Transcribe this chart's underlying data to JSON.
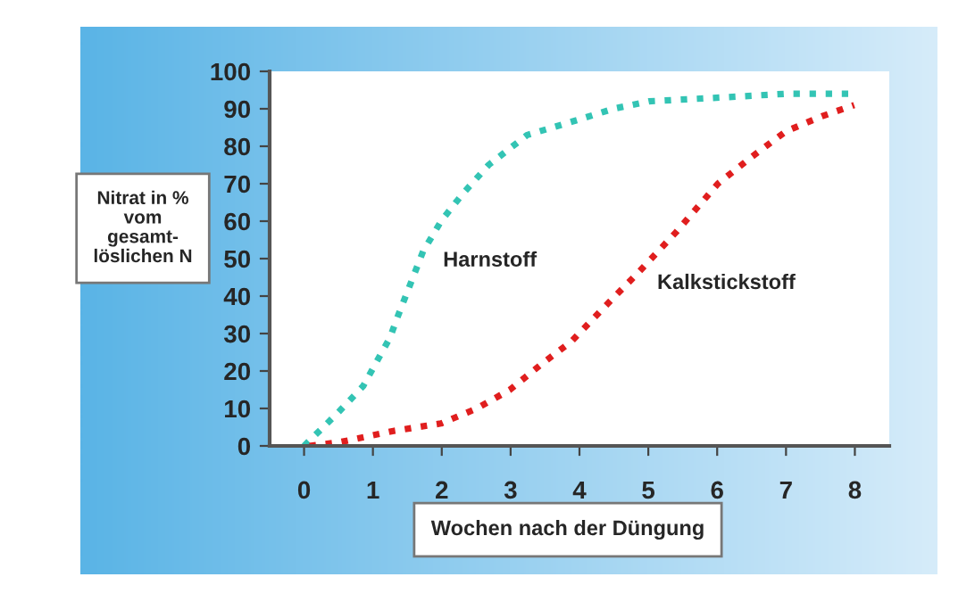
{
  "chart_data": {
    "type": "line",
    "xlabel": "Wochen nach der Düngung",
    "ylabel": "Nitrat in %\nvom\ngesamt-\nlöslichen N",
    "xlim": [
      -0.5,
      8.5
    ],
    "xticks": [
      0,
      1,
      2,
      3,
      4,
      5,
      6,
      7,
      8
    ],
    "ylim": [
      0,
      100
    ],
    "yticks": [
      0,
      10,
      20,
      30,
      40,
      50,
      60,
      70,
      80,
      90,
      100
    ],
    "grid": false,
    "legend": false,
    "line_style": "dotted",
    "marker": "none",
    "series": [
      {
        "name": "Harnstoff",
        "color": "#33c4b4",
        "x": [
          0,
          0.5,
          0.86,
          1.25,
          1.37,
          1.73,
          1.99,
          2.29,
          2.68,
          3.24,
          3.97,
          4.49,
          5.01,
          6.04,
          6.99,
          7.99
        ],
        "values": [
          0,
          9,
          16,
          29,
          35,
          52,
          60,
          67,
          75,
          83,
          87,
          90,
          92,
          93,
          94,
          94
        ]
      },
      {
        "name": "Kalkstickstoff",
        "color": "#e01e1e",
        "x": [
          0.08,
          0.52,
          1.3,
          1.99,
          2.51,
          2.99,
          3.46,
          3.89,
          4.41,
          4.84,
          5.4,
          6.01,
          6.49,
          7.0,
          7.52,
          7.99
        ],
        "values": [
          0,
          1,
          4,
          6,
          10,
          15,
          22,
          28,
          38,
          46,
          57,
          70,
          77,
          84,
          88,
          91
        ]
      }
    ]
  }
}
